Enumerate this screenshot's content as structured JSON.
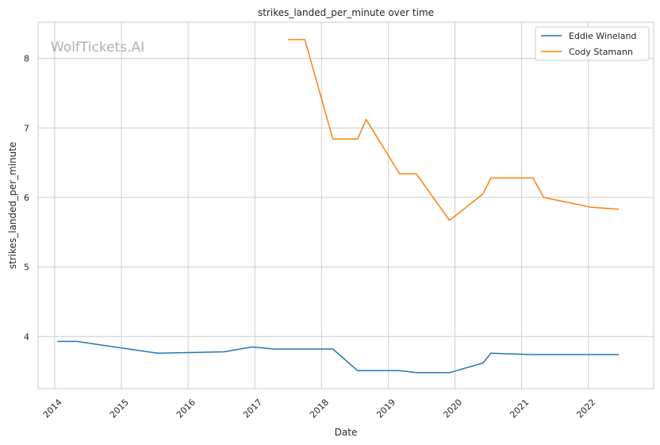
{
  "chart_data": {
    "type": "line",
    "title": "strikes_landed_per_minute over time",
    "xlabel": "Date",
    "ylabel": "strikes_landed_per_minute",
    "watermark": "WolfTickets.AI",
    "xlim": [
      2013.75,
      2022.98
    ],
    "ylim": [
      3.25,
      8.52
    ],
    "x_ticks": [
      2014,
      2015,
      2016,
      2017,
      2018,
      2019,
      2020,
      2021,
      2022
    ],
    "x_tick_labels": [
      "2014",
      "2015",
      "2016",
      "2017",
      "2018",
      "2019",
      "2020",
      "2021",
      "2022"
    ],
    "y_ticks": [
      4,
      5,
      6,
      7,
      8
    ],
    "y_tick_labels": [
      "4",
      "5",
      "6",
      "7",
      "8"
    ],
    "grid": true,
    "legend_position": "top-right",
    "series": [
      {
        "name": "Eddie Wineland",
        "color": "#1f77b4",
        "points": [
          [
            2014.04,
            3.93
          ],
          [
            2014.33,
            3.93
          ],
          [
            2015.54,
            3.76
          ],
          [
            2016.54,
            3.78
          ],
          [
            2016.96,
            3.85
          ],
          [
            2017.29,
            3.82
          ],
          [
            2018.17,
            3.82
          ],
          [
            2018.54,
            3.51
          ],
          [
            2019.17,
            3.51
          ],
          [
            2019.42,
            3.48
          ],
          [
            2019.92,
            3.48
          ],
          [
            2020.42,
            3.62
          ],
          [
            2020.54,
            3.76
          ],
          [
            2021.17,
            3.74
          ],
          [
            2022.46,
            3.74
          ]
        ]
      },
      {
        "name": "Cody Stamann",
        "color": "#ff7f0e",
        "points": [
          [
            2017.5,
            8.27
          ],
          [
            2017.75,
            8.27
          ],
          [
            2018.17,
            6.84
          ],
          [
            2018.54,
            6.84
          ],
          [
            2018.67,
            7.12
          ],
          [
            2019.17,
            6.34
          ],
          [
            2019.42,
            6.34
          ],
          [
            2019.92,
            5.67
          ],
          [
            2020.42,
            6.05
          ],
          [
            2020.54,
            6.28
          ],
          [
            2021.17,
            6.28
          ],
          [
            2021.33,
            6.0
          ],
          [
            2022.04,
            5.86
          ],
          [
            2022.46,
            5.83
          ]
        ]
      }
    ]
  }
}
